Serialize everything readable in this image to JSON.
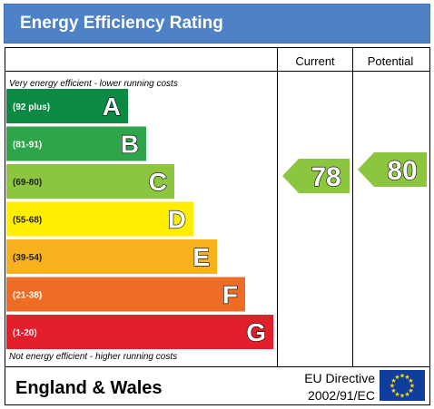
{
  "header": {
    "title": "Energy Efficiency Rating"
  },
  "columns": {
    "current": "Current",
    "potential": "Potential"
  },
  "notes": {
    "top": "Very energy efficient - lower running costs",
    "bottom": "Not energy efficient - higher running costs"
  },
  "footer": {
    "region": "England & Wales",
    "directive_line1": "EU Directive",
    "directive_line2": "2002/91/EC"
  },
  "colors": {
    "header": "#4f81c7",
    "eu_flag": "#0e3d9c",
    "eu_stars": "#ffdd00"
  },
  "chart_data": {
    "type": "bar",
    "categories": [
      "A",
      "B",
      "C",
      "D",
      "E",
      "F",
      "G"
    ],
    "ranges": [
      "(92 plus)",
      "(81-91)",
      "(69-80)",
      "(55-68)",
      "(39-54)",
      "(21-38)",
      "(1-20)"
    ],
    "colors": [
      "#0c8a43",
      "#2ea54a",
      "#8cc63f",
      "#ffee00",
      "#f7b11e",
      "#ee6d26",
      "#e31d2a"
    ],
    "current": {
      "value": 78,
      "band": "C",
      "color": "#8cc63f"
    },
    "potential": {
      "value": 80,
      "band": "C",
      "color": "#8cc63f"
    }
  }
}
